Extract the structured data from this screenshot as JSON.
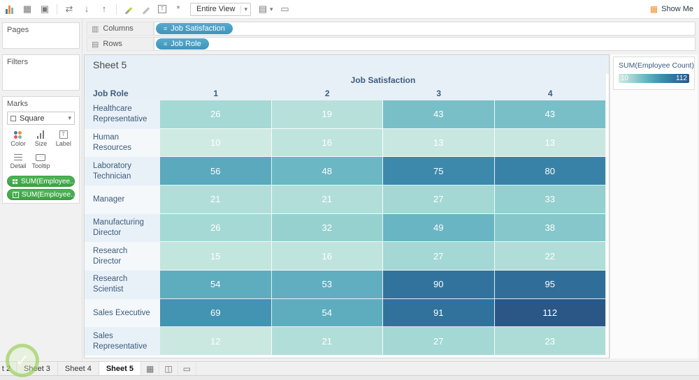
{
  "toolbar": {
    "view_mode": "Entire View",
    "show_me": "Show Me"
  },
  "shelves": {
    "columns_label": "Columns",
    "rows_label": "Rows",
    "columns_pill": "Job Satisfaction",
    "rows_pill": "Job Role"
  },
  "sidebar": {
    "pages_label": "Pages",
    "filters_label": "Filters",
    "marks": {
      "label": "Marks",
      "mark_type": "Square",
      "buttons": [
        {
          "label": "Color"
        },
        {
          "label": "Size"
        },
        {
          "label": "Label"
        },
        {
          "label": "Detail"
        },
        {
          "label": "Tooltip"
        }
      ],
      "pills": [
        "SUM(Employee..",
        "SUM(Employee.."
      ]
    }
  },
  "legend": {
    "title": "SUM(Employee Count)",
    "min_label": "10",
    "max_label": "112"
  },
  "sheet": {
    "title": "Sheet 5",
    "col_header": "Job Satisfaction",
    "row_header": "Job Role"
  },
  "tabs": [
    "t 2",
    "Sheet 3",
    "Sheet 4",
    "Sheet 5"
  ],
  "chart_data": {
    "type": "heatmap",
    "title": "Sheet 5",
    "x_label": "Job Satisfaction",
    "y_label": "Job Role",
    "columns": [
      "1",
      "2",
      "3",
      "4"
    ],
    "rows": [
      "Healthcare Representative",
      "Human Resources",
      "Laboratory Technician",
      "Manager",
      "Manufacturing Director",
      "Research Director",
      "Research Scientist",
      "Sales Executive",
      "Sales Representative"
    ],
    "values": [
      [
        26,
        19,
        43,
        43
      ],
      [
        10,
        16,
        13,
        13
      ],
      [
        56,
        48,
        75,
        80
      ],
      [
        21,
        21,
        27,
        33
      ],
      [
        26,
        32,
        49,
        38
      ],
      [
        15,
        16,
        27,
        22
      ],
      [
        54,
        53,
        90,
        95
      ],
      [
        69,
        54,
        91,
        112
      ],
      [
        12,
        21,
        27,
        23
      ]
    ],
    "color_scale": {
      "measure": "SUM(Employee Count)",
      "min": 10,
      "max": 112,
      "stops": [
        "#cfeae2",
        "#9ad4d1",
        "#64b2c2",
        "#3f8fb0",
        "#31719c",
        "#2b5787"
      ]
    }
  }
}
